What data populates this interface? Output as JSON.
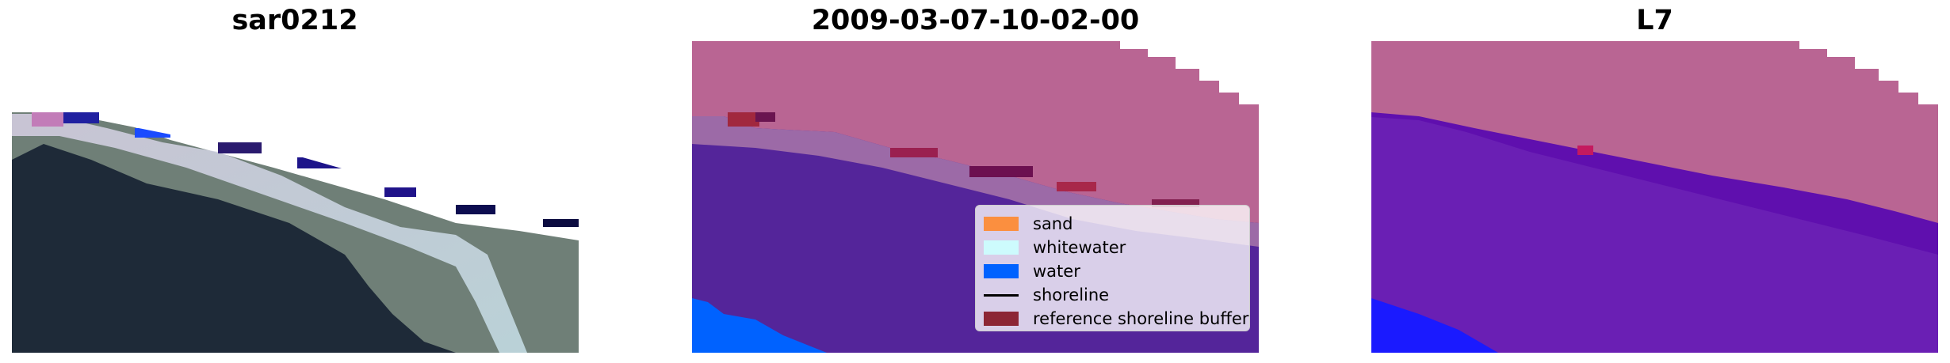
{
  "panels": [
    {
      "title": "sar0212"
    },
    {
      "title": "2009-03-07-10-02-00"
    },
    {
      "title": "L7"
    }
  ],
  "legend": {
    "items": [
      {
        "label": "sand",
        "color": "#fb8f3f",
        "kind": "patch"
      },
      {
        "label": "whitewater",
        "color": "#cdfbfd",
        "kind": "patch"
      },
      {
        "label": "water",
        "color": "#0062ff",
        "kind": "patch"
      },
      {
        "label": "shoreline",
        "color": "#000000",
        "kind": "line"
      },
      {
        "label": "reference shoreline buffer",
        "color": "#8c2635",
        "kind": "patch"
      }
    ]
  },
  "colors": {
    "land_overlay": "#b96593",
    "water_overlay": "#54259a",
    "water_overlay_l7": "#5f0fae",
    "sea_blue": "#0062ff",
    "buffer": "#8c2635"
  }
}
